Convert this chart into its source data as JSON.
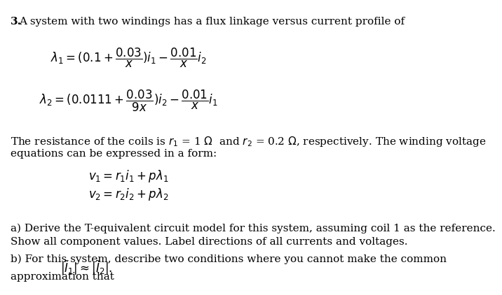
{
  "background_color": "#ffffff",
  "title_number": "3.",
  "title_text": "A system with two windings has a flux linkage versus current profile of",
  "resistance_line1": "The resistance of the coils is ",
  "resistance_line2": "equations can be expressed in a form:",
  "parta_line1": "a) Derive the T-equivalent circuit model for this system, assuming coil 1 as the reference.",
  "parta_line2": "Show all component values. Label directions of all currents and voltages.",
  "partb_line1": "b) For this system, describe two conditions where you cannot make the common",
  "approx_label": "approximation that",
  "fontsize_body": 11,
  "fontsize_math": 12
}
